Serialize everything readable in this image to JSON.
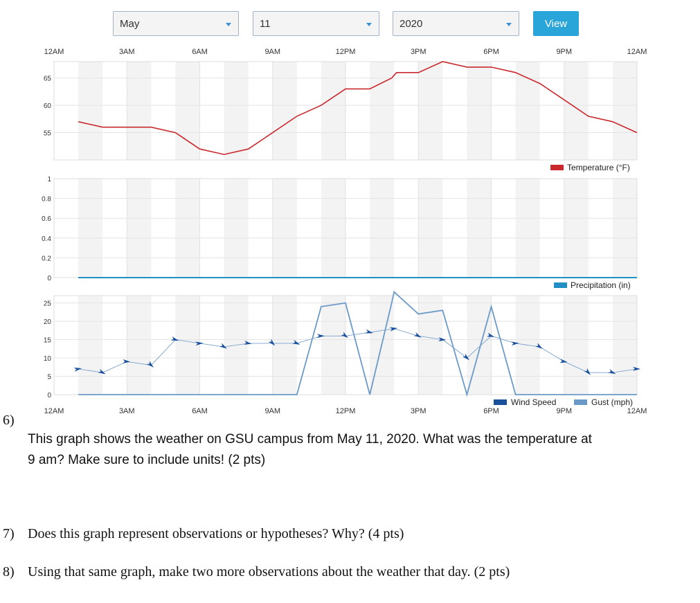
{
  "controls": {
    "month": "May",
    "day": "11",
    "year": "2020",
    "view_label": "View"
  },
  "chart_data": {
    "type": "line",
    "x_ticks": [
      "12AM",
      "3AM",
      "6AM",
      "9AM",
      "12PM",
      "3PM",
      "6PM",
      "9PM",
      "12AM"
    ],
    "x_range_hours": [
      0,
      24
    ],
    "panels": [
      {
        "name": "temperature",
        "legend": "Temperature (°F)",
        "color": "#c9282d",
        "y_ticks": [
          "65",
          "60",
          "55"
        ],
        "ylim": [
          50,
          68
        ],
        "series": [
          {
            "name": "Temperature (°F)",
            "x": [
              1,
              2,
              3,
              4,
              5,
              6,
              7,
              8,
              9,
              10,
              11,
              12,
              13,
              13.9,
              14.1,
              15,
              16,
              17,
              18,
              19,
              20,
              21,
              22,
              23,
              24
            ],
            "y": [
              57,
              56,
              56,
              56,
              55,
              52,
              51,
              52,
              55,
              58,
              60,
              63,
              63,
              65,
              66,
              66,
              68,
              67,
              67,
              66,
              64,
              61,
              58,
              57,
              55
            ]
          }
        ]
      },
      {
        "name": "precipitation",
        "legend": "Precipitation (in)",
        "color": "#1f8fc4",
        "y_ticks": [
          "1",
          "0.8",
          "0.6",
          "0.4",
          "0.2",
          "0"
        ],
        "ylim": [
          0,
          1
        ],
        "series": [
          {
            "name": "Precipitation (in)",
            "x": [
              1,
              24
            ],
            "y": [
              0,
              0
            ]
          }
        ]
      },
      {
        "name": "wind",
        "legend_wind": "Wind Speed",
        "legend_gust": "Gust (mph)",
        "wind_color": "#1a4f9c",
        "gust_color": "#6b99c8",
        "y_ticks": [
          "25",
          "20",
          "15",
          "10",
          "5",
          "0"
        ],
        "ylim": [
          0,
          27
        ],
        "series": [
          {
            "name": "Wind Speed",
            "x": [
              1,
              2,
              3,
              4,
              5,
              6,
              7,
              8,
              9,
              10,
              11,
              12,
              13,
              14,
              15,
              16,
              17,
              18,
              19,
              20,
              21,
              22,
              23,
              24
            ],
            "y": [
              7,
              6,
              9,
              8,
              15,
              14,
              13,
              14,
              14,
              14,
              16,
              16,
              17,
              18,
              16,
              15,
              10,
              16,
              14,
              13,
              9,
              6,
              6,
              7
            ]
          },
          {
            "name": "Gust (mph)",
            "x": [
              1,
              2,
              3,
              4,
              5,
              6,
              7,
              8,
              9,
              10,
              11,
              12,
              13,
              13.9,
              14,
              15,
              16,
              17,
              18,
              19,
              20,
              21,
              22,
              23,
              24
            ],
            "y": [
              0,
              0,
              0,
              0,
              0,
              0,
              0,
              0,
              0,
              0,
              24,
              25,
              0,
              25,
              28,
              22,
              23,
              0,
              24,
              0,
              0,
              0,
              0,
              0,
              0
            ]
          }
        ]
      }
    ]
  },
  "questions": {
    "q6_number": "6)",
    "q6_text": "This graph shows the weather on GSU campus from May 11, 2020.  What was the temperature at 9 am? Make sure to include units! (2 pts)",
    "q7_number": "7)",
    "q7_text": "Does this graph represent observations or hypotheses? Why? (4 pts)",
    "q8_number": "8)",
    "q8_text": "Using that same graph, make two more observations about the weather that day. (2 pts)"
  }
}
